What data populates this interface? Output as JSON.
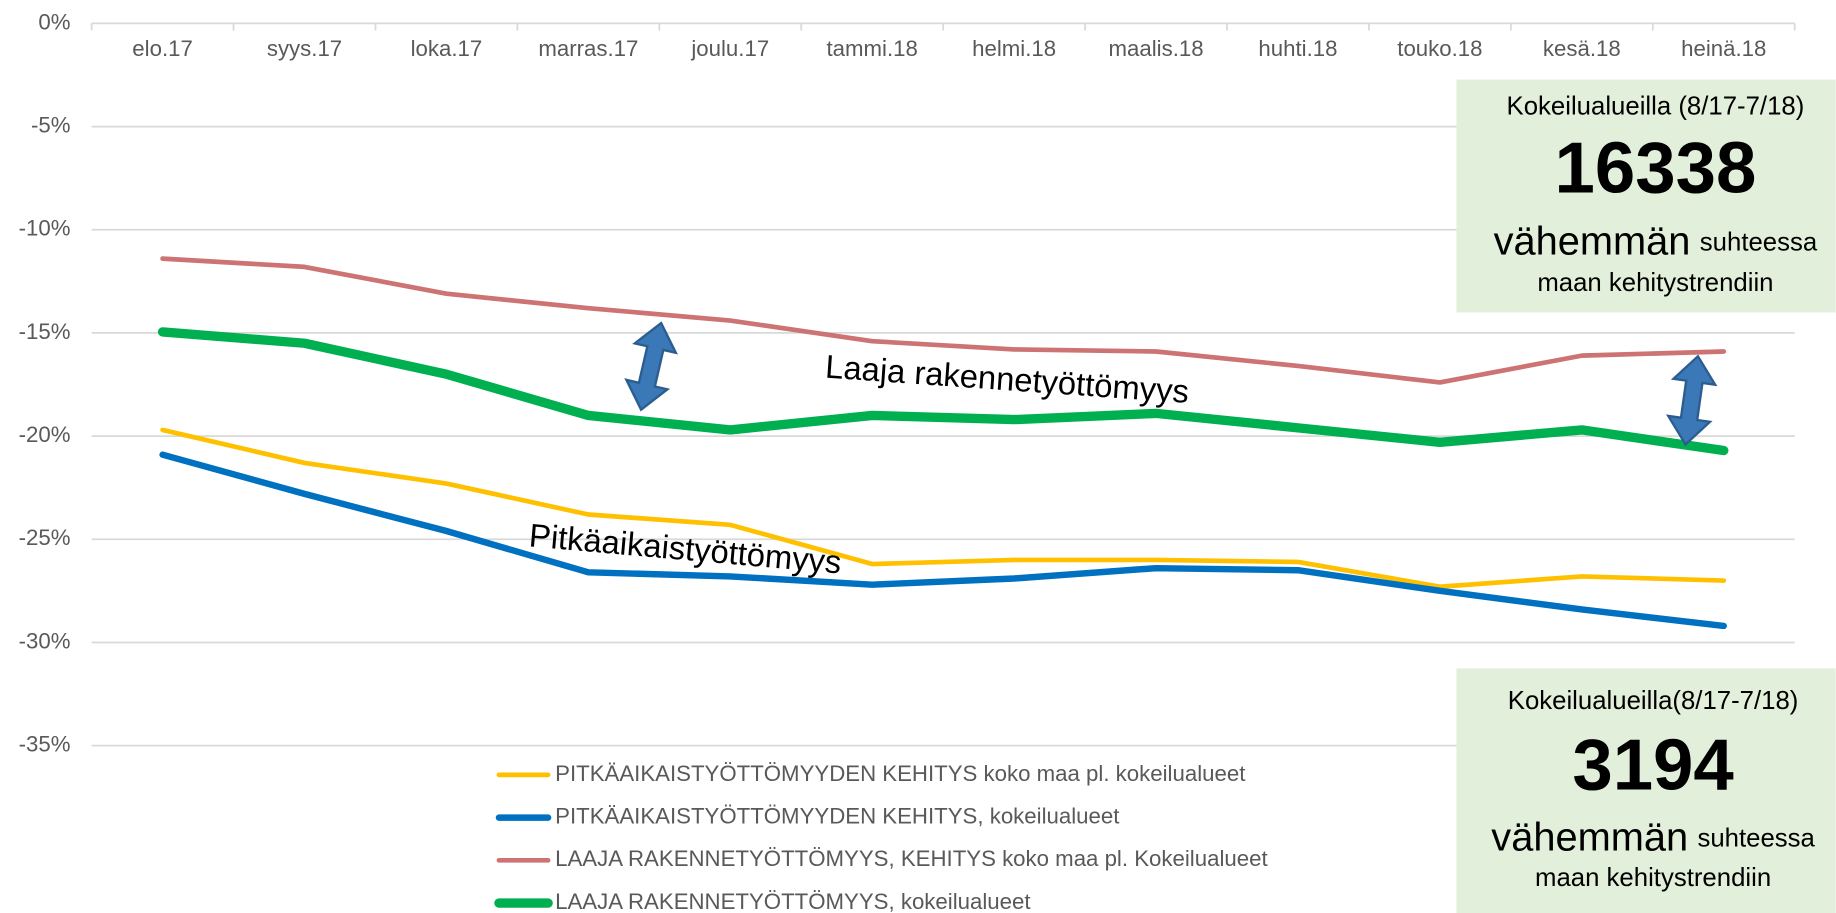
{
  "chart_data": {
    "type": "line",
    "categories": [
      "elo.17",
      "syys.17",
      "loka.17",
      "marras.17",
      "joulu.17",
      "tammi.18",
      "helmi.18",
      "maalis.18",
      "huhti.18",
      "touko.18",
      "kesä.18",
      "heinä.18"
    ],
    "series": [
      {
        "name": "PITKÄAIKAISTYÖTTÖMYYDEN KEHITYS  koko maa pl. kokeilualueet",
        "color": "#ffc000",
        "width": 4,
        "values": [
          -19.7,
          -21.3,
          -22.3,
          -23.8,
          -24.3,
          -26.2,
          -26.0,
          -26.0,
          -26.1,
          -27.3,
          -26.8,
          -27.0
        ]
      },
      {
        "name": "PITKÄAIKAISTYÖTTÖMYYDEN KEHITYS, kokeilualueet",
        "color": "#0070c0",
        "width": 5.5,
        "values": [
          -20.9,
          -22.8,
          -24.6,
          -26.6,
          -26.8,
          -27.2,
          -26.9,
          -26.4,
          -26.5,
          -27.5,
          -28.4,
          -29.2
        ]
      },
      {
        "name": "LAAJA RAKENNETYÖTTÖMYYS, KEHITYS koko maa pl. Kokeilualueet",
        "color": "#cd7373",
        "width": 4,
        "values": [
          -11.4,
          -11.8,
          -13.1,
          -13.8,
          -14.4,
          -15.4,
          -15.8,
          -15.9,
          -16.6,
          -17.4,
          -16.1,
          -15.9
        ]
      },
      {
        "name": "LAAJA RAKENNETYÖTTÖMYYS, kokeilualueet",
        "color": "#00b050",
        "width": 8,
        "values": [
          -14.95,
          -15.5,
          -17.0,
          -19.0,
          -19.7,
          -19.0,
          -19.2,
          -18.9,
          -19.6,
          -20.3,
          -19.7,
          -20.7
        ]
      }
    ],
    "ylim": [
      -35,
      0
    ],
    "yticks": [
      {
        "value": 0,
        "label": "0%"
      },
      {
        "value": -5,
        "label": "-5%"
      },
      {
        "value": -10,
        "label": "-10%"
      },
      {
        "value": -15,
        "label": "-15%"
      },
      {
        "value": -20,
        "label": "-20%"
      },
      {
        "value": -25,
        "label": "-25%"
      },
      {
        "value": -30,
        "label": "-30%"
      },
      {
        "value": -35,
        "label": "-35%"
      }
    ],
    "grid": true,
    "legend": "bottom",
    "annotations": [
      "Laaja rakennetyöttömyys",
      "Pitkäaikaistyöttömyys"
    ],
    "callouts": [
      {
        "heading": "Kokeilualueilla (8/17-7/18)",
        "number": 16338,
        "big_word": "vähemmän",
        "small_word": "suhteessa",
        "footer": "maan kehitystrendiin"
      },
      {
        "heading": "Kokeilualueilla(8/17-7/18)",
        "number": 3194,
        "big_word": "vähemmän",
        "small_word": "suhteessa",
        "footer": "maan kehitystrendiin"
      }
    ]
  }
}
